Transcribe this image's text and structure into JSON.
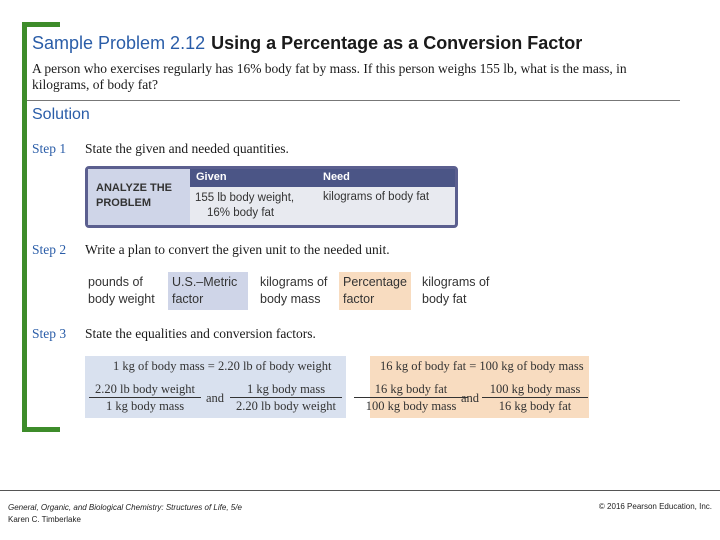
{
  "header": {
    "number": "Sample Problem 2.12",
    "name": "Using a Percentage as a Conversion Factor"
  },
  "problem": "A person who exercises regularly has 16% body fat by mass. If this person weighs 155 lb, what is the mass, in kilograms, of body fat?",
  "solution_label": "Solution",
  "steps": [
    {
      "label": "Step 1",
      "text": "State the given and needed quantities."
    },
    {
      "label": "Step 2",
      "text": "Write a plan to convert the given unit to the needed unit."
    },
    {
      "label": "Step 3",
      "text": "State the equalities and conversion factors."
    }
  ],
  "analyze": {
    "label_line1": "ANALYZE THE",
    "label_line2": "PROBLEM",
    "given_header": "Given",
    "need_header": "Need",
    "given_line1": "155 lb body weight,",
    "given_line2": "16% body fat",
    "need_value": "kilograms of body fat"
  },
  "plan": {
    "start_line1": "pounds of",
    "start_line2": "body weight",
    "factor1_line1": "U.S.–Metric",
    "factor1_line2": "factor",
    "mid_line1": "kilograms of",
    "mid_line2": "body mass",
    "factor2_line1": "Percentage",
    "factor2_line2": "factor",
    "end_line1": "kilograms of",
    "end_line2": "body fat"
  },
  "equalities": {
    "blue_eq": "1 kg of body mass = 2.20 lb of body weight",
    "blue_f1_num": "2.20 lb body weight",
    "blue_f1_den": "1 kg body mass",
    "blue_f2_num": "1 kg body mass",
    "blue_f2_den": "2.20 lb body weight",
    "orange_eq": "16 kg of body fat = 100 kg of body mass",
    "orange_f1_num": "16 kg body fat",
    "orange_f1_den": "100 kg body mass",
    "orange_f2_num": "100 kg body mass",
    "orange_f2_den": "16 kg body fat",
    "and": "and"
  },
  "footer": {
    "book_title": "General, Organic, and Biological Chemistry: Structures of Life, 5/e",
    "author": "Karen C. Timberlake",
    "copyright": "© 2016 Pearson Education, Inc."
  },
  "colors": {
    "accent_green": "#3d8c2a",
    "title_blue": "#2a5da8",
    "factor_blue": "#cfd5e8",
    "factor_orange": "#f8dcc0"
  }
}
